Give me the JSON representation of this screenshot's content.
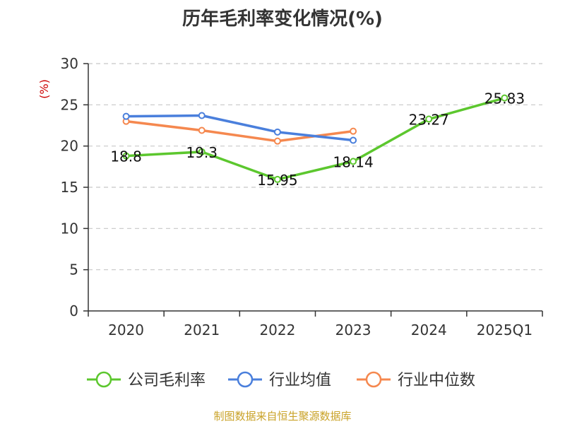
{
  "chart_data": {
    "type": "line",
    "title": "历年毛利率变化情况(%)",
    "ylabel": "(%)",
    "xlabel": "",
    "categories": [
      "2020",
      "2021",
      "2022",
      "2023",
      "2024",
      "2025Q1"
    ],
    "ylim": [
      0,
      30
    ],
    "yticks": [
      0,
      5,
      10,
      15,
      20,
      25,
      30
    ],
    "grid": true,
    "legend_position": "bottom",
    "series": [
      {
        "name": "公司毛利率",
        "color": "#5cc72e",
        "values": [
          18.8,
          19.3,
          15.95,
          18.14,
          23.27,
          25.83
        ],
        "labels": [
          "18.8",
          "19.3",
          "15.95",
          "18.14",
          "23.27",
          "25.83"
        ]
      },
      {
        "name": "行业均值",
        "color": "#4a7fdc",
        "values": [
          23.6,
          23.7,
          21.7,
          20.7,
          null,
          null
        ]
      },
      {
        "name": "行业中位数",
        "color": "#f5884f",
        "values": [
          23.0,
          21.9,
          20.6,
          21.8,
          null,
          null
        ]
      }
    ]
  },
  "source": "制图数据来自恒生聚源数据库"
}
